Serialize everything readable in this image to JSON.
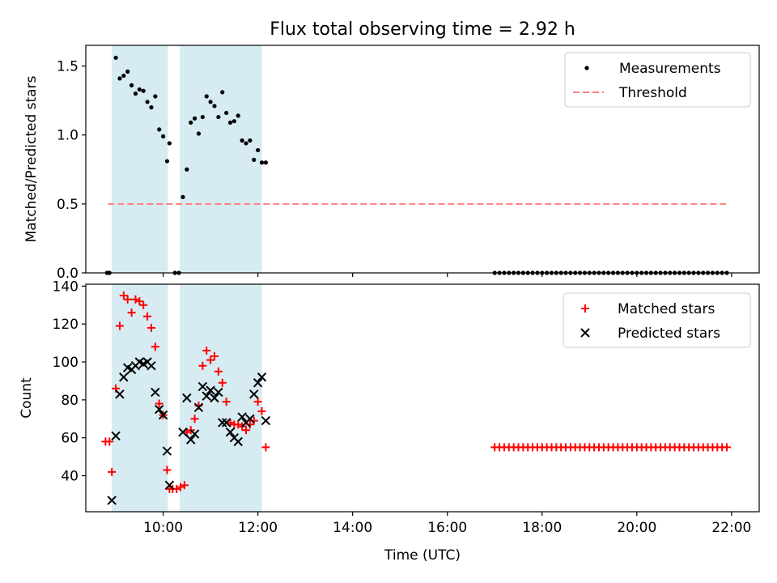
{
  "title": "Flux total observing time = 2.92 h",
  "xlabel": "Time (UTC)",
  "x_ticks": [
    "10:00",
    "12:00",
    "14:00",
    "16:00",
    "18:00",
    "20:00",
    "22:00"
  ],
  "colors": {
    "shade": "#add8e6",
    "threshold": "#ff7f7f",
    "matched": "#ff0000",
    "predicted": "#000000",
    "measurement": "#000000"
  },
  "chart_data": [
    {
      "type": "scatter",
      "ylabel": "Matched/Predicted stars",
      "xlim": [
        "08:22",
        "22:35"
      ],
      "ylim": [
        0,
        1.65
      ],
      "yticks": [
        "0.0",
        "0.5",
        "1.0",
        "1.5"
      ],
      "legend": {
        "placement": "top-right",
        "entries": [
          "Measurements",
          "Threshold"
        ]
      },
      "shaded_intervals": [
        [
          "08:55",
          "10:06"
        ],
        [
          "10:21",
          "12:05"
        ]
      ],
      "threshold": {
        "name": "Threshold",
        "y": 0.5,
        "x": [
          "08:50",
          "21:56"
        ]
      },
      "series": [
        {
          "name": "Measurements",
          "marker": "dot",
          "points": [
            [
              "08:49",
              0
            ],
            [
              "08:52",
              0
            ],
            [
              "09:00",
              1.56
            ],
            [
              "09:05",
              1.41
            ],
            [
              "09:10",
              1.43
            ],
            [
              "09:15",
              1.46
            ],
            [
              "09:20",
              1.36
            ],
            [
              "09:25",
              1.3
            ],
            [
              "09:30",
              1.33
            ],
            [
              "09:35",
              1.32
            ],
            [
              "09:40",
              1.24
            ],
            [
              "09:45",
              1.2
            ],
            [
              "09:50",
              1.28
            ],
            [
              "09:55",
              1.04
            ],
            [
              "10:00",
              0.99
            ],
            [
              "10:05",
              0.81
            ],
            [
              "10:08",
              0.94
            ],
            [
              "10:15",
              0
            ],
            [
              "10:20",
              0
            ],
            [
              "10:25",
              0.55
            ],
            [
              "10:30",
              0.75
            ],
            [
              "10:35",
              1.09
            ],
            [
              "10:40",
              1.12
            ],
            [
              "10:45",
              1.01
            ],
            [
              "10:50",
              1.13
            ],
            [
              "10:55",
              1.28
            ],
            [
              "11:00",
              1.24
            ],
            [
              "11:05",
              1.21
            ],
            [
              "11:10",
              1.13
            ],
            [
              "11:15",
              1.31
            ],
            [
              "11:20",
              1.16
            ],
            [
              "11:25",
              1.09
            ],
            [
              "11:30",
              1.1
            ],
            [
              "11:35",
              1.14
            ],
            [
              "11:40",
              0.96
            ],
            [
              "11:45",
              0.94
            ],
            [
              "11:50",
              0.96
            ],
            [
              "11:55",
              0.82
            ],
            [
              "12:00",
              0.89
            ],
            [
              "12:05",
              0.8
            ],
            [
              "12:10",
              0.8
            ],
            [
              "17:00",
              0
            ],
            [
              "17:06",
              0
            ],
            [
              "17:12",
              0
            ],
            [
              "17:18",
              0
            ],
            [
              "17:24",
              0
            ],
            [
              "17:30",
              0
            ],
            [
              "17:36",
              0
            ],
            [
              "17:42",
              0
            ],
            [
              "17:48",
              0
            ],
            [
              "17:54",
              0
            ],
            [
              "18:00",
              0
            ],
            [
              "18:06",
              0
            ],
            [
              "18:12",
              0
            ],
            [
              "18:18",
              0
            ],
            [
              "18:24",
              0
            ],
            [
              "18:30",
              0
            ],
            [
              "18:36",
              0
            ],
            [
              "18:42",
              0
            ],
            [
              "18:48",
              0
            ],
            [
              "18:54",
              0
            ],
            [
              "19:00",
              0
            ],
            [
              "19:06",
              0
            ],
            [
              "19:12",
              0
            ],
            [
              "19:18",
              0
            ],
            [
              "19:24",
              0
            ],
            [
              "19:30",
              0
            ],
            [
              "19:36",
              0
            ],
            [
              "19:42",
              0
            ],
            [
              "19:48",
              0
            ],
            [
              "19:54",
              0
            ],
            [
              "20:00",
              0
            ],
            [
              "20:06",
              0
            ],
            [
              "20:12",
              0
            ],
            [
              "20:18",
              0
            ],
            [
              "20:24",
              0
            ],
            [
              "20:30",
              0
            ],
            [
              "20:36",
              0
            ],
            [
              "20:42",
              0
            ],
            [
              "20:48",
              0
            ],
            [
              "20:54",
              0
            ],
            [
              "21:00",
              0
            ],
            [
              "21:06",
              0
            ],
            [
              "21:12",
              0
            ],
            [
              "21:18",
              0
            ],
            [
              "21:24",
              0
            ],
            [
              "21:30",
              0
            ],
            [
              "21:36",
              0
            ],
            [
              "21:42",
              0
            ],
            [
              "21:48",
              0
            ],
            [
              "21:54",
              0
            ]
          ]
        }
      ]
    },
    {
      "type": "scatter",
      "ylabel": "Count",
      "xlim": [
        "08:22",
        "22:35"
      ],
      "ylim": [
        21,
        141
      ],
      "yticks": [
        "40",
        "60",
        "80",
        "100",
        "120",
        "140"
      ],
      "legend": {
        "placement": "top-right",
        "entries": [
          "Matched stars",
          "Predicted stars"
        ]
      },
      "shaded_intervals": [
        [
          "08:55",
          "10:06"
        ],
        [
          "10:21",
          "12:05"
        ]
      ],
      "series": [
        {
          "name": "Matched stars",
          "marker": "plus",
          "points": [
            [
              "08:47",
              58
            ],
            [
              "08:52",
              58
            ],
            [
              "08:55",
              42
            ],
            [
              "09:00",
              86
            ],
            [
              "09:05",
              119
            ],
            [
              "09:10",
              135
            ],
            [
              "09:15",
              133
            ],
            [
              "09:20",
              126
            ],
            [
              "09:25",
              133
            ],
            [
              "09:30",
              132
            ],
            [
              "09:35",
              130
            ],
            [
              "09:40",
              124
            ],
            [
              "09:45",
              118
            ],
            [
              "09:50",
              108
            ],
            [
              "09:55",
              78
            ],
            [
              "10:00",
              72
            ],
            [
              "10:05",
              43
            ],
            [
              "10:08",
              33
            ],
            [
              "10:12",
              33
            ],
            [
              "10:17",
              33
            ],
            [
              "10:22",
              34
            ],
            [
              "10:27",
              35
            ],
            [
              "10:30",
              63
            ],
            [
              "10:35",
              64
            ],
            [
              "10:40",
              70
            ],
            [
              "10:45",
              77
            ],
            [
              "10:50",
              98
            ],
            [
              "10:55",
              106
            ],
            [
              "11:00",
              101
            ],
            [
              "11:05",
              103
            ],
            [
              "11:10",
              95
            ],
            [
              "11:15",
              89
            ],
            [
              "11:20",
              79
            ],
            [
              "11:25",
              68
            ],
            [
              "11:30",
              67
            ],
            [
              "11:35",
              67
            ],
            [
              "11:40",
              66
            ],
            [
              "11:45",
              64
            ],
            [
              "11:50",
              67
            ],
            [
              "11:55",
              69
            ],
            [
              "12:00",
              79
            ],
            [
              "12:05",
              74
            ],
            [
              "12:10",
              55
            ],
            [
              "17:00",
              55
            ],
            [
              "17:06",
              55
            ],
            [
              "17:12",
              55
            ],
            [
              "17:18",
              55
            ],
            [
              "17:24",
              55
            ],
            [
              "17:30",
              55
            ],
            [
              "17:36",
              55
            ],
            [
              "17:42",
              55
            ],
            [
              "17:48",
              55
            ],
            [
              "17:54",
              55
            ],
            [
              "18:00",
              55
            ],
            [
              "18:06",
              55
            ],
            [
              "18:12",
              55
            ],
            [
              "18:18",
              55
            ],
            [
              "18:24",
              55
            ],
            [
              "18:30",
              55
            ],
            [
              "18:36",
              55
            ],
            [
              "18:42",
              55
            ],
            [
              "18:48",
              55
            ],
            [
              "18:54",
              55
            ],
            [
              "19:00",
              55
            ],
            [
              "19:06",
              55
            ],
            [
              "19:12",
              55
            ],
            [
              "19:18",
              55
            ],
            [
              "19:24",
              55
            ],
            [
              "19:30",
              55
            ],
            [
              "19:36",
              55
            ],
            [
              "19:42",
              55
            ],
            [
              "19:48",
              55
            ],
            [
              "19:54",
              55
            ],
            [
              "20:00",
              55
            ],
            [
              "20:06",
              55
            ],
            [
              "20:12",
              55
            ],
            [
              "20:18",
              55
            ],
            [
              "20:24",
              55
            ],
            [
              "20:30",
              55
            ],
            [
              "20:36",
              55
            ],
            [
              "20:42",
              55
            ],
            [
              "20:48",
              55
            ],
            [
              "20:54",
              55
            ],
            [
              "21:00",
              55
            ],
            [
              "21:06",
              55
            ],
            [
              "21:12",
              55
            ],
            [
              "21:18",
              55
            ],
            [
              "21:24",
              55
            ],
            [
              "21:30",
              55
            ],
            [
              "21:36",
              55
            ],
            [
              "21:42",
              55
            ],
            [
              "21:48",
              55
            ],
            [
              "21:54",
              55
            ]
          ]
        },
        {
          "name": "Predicted stars",
          "marker": "x",
          "points": [
            [
              "08:55",
              27
            ],
            [
              "09:00",
              61
            ],
            [
              "09:05",
              83
            ],
            [
              "09:10",
              92
            ],
            [
              "09:15",
              97
            ],
            [
              "09:20",
              96
            ],
            [
              "09:25",
              98
            ],
            [
              "09:30",
              100
            ],
            [
              "09:35",
              99
            ],
            [
              "09:40",
              100
            ],
            [
              "09:45",
              98
            ],
            [
              "09:50",
              84
            ],
            [
              "09:55",
              75
            ],
            [
              "10:00",
              72
            ],
            [
              "10:05",
              53
            ],
            [
              "10:08",
              35
            ],
            [
              "10:25",
              63
            ],
            [
              "10:30",
              81
            ],
            [
              "10:35",
              59
            ],
            [
              "10:40",
              62
            ],
            [
              "10:45",
              76
            ],
            [
              "10:50",
              87
            ],
            [
              "10:55",
              82
            ],
            [
              "11:00",
              85
            ],
            [
              "11:05",
              81
            ],
            [
              "11:10",
              84
            ],
            [
              "11:15",
              68
            ],
            [
              "11:20",
              68
            ],
            [
              "11:25",
              63
            ],
            [
              "11:30",
              60
            ],
            [
              "11:35",
              58
            ],
            [
              "11:40",
              71
            ],
            [
              "11:45",
              68
            ],
            [
              "11:50",
              70
            ],
            [
              "11:55",
              83
            ],
            [
              "12:00",
              89
            ],
            [
              "12:05",
              92
            ],
            [
              "12:10",
              69
            ]
          ]
        }
      ]
    }
  ]
}
